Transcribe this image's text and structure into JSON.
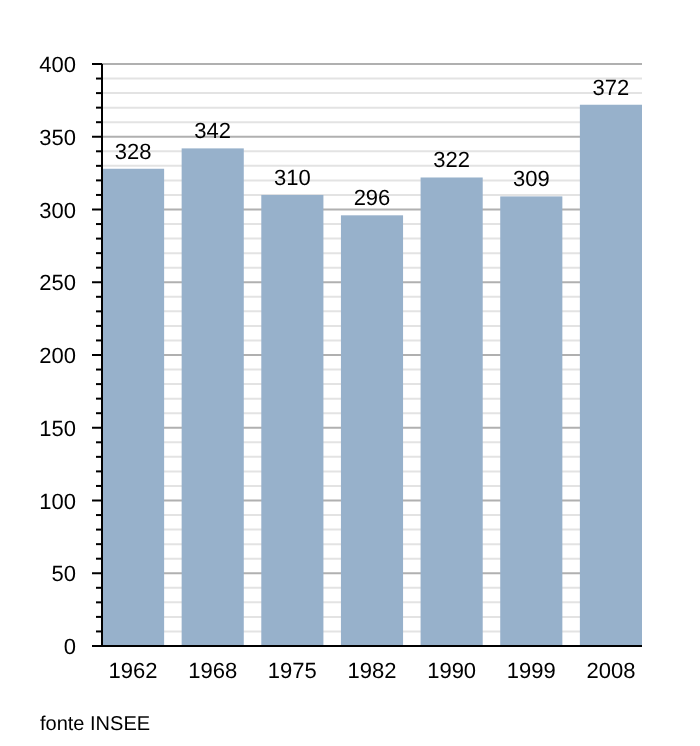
{
  "chart_data": {
    "type": "bar",
    "categories": [
      "1962",
      "1968",
      "1975",
      "1982",
      "1990",
      "1999",
      "2008"
    ],
    "values": [
      328,
      342,
      310,
      296,
      322,
      309,
      372
    ],
    "color": "#97b1cb",
    "data_labels": true,
    "ylim": [
      0,
      400
    ],
    "yticks": [
      0,
      {
        "value": 10,
        "label": null
      },
      {
        "value": 20,
        "label": null
      },
      {
        "value": 30,
        "label": null
      },
      {
        "value": 40,
        "label": null
      },
      50,
      {
        "value": 60,
        "label": null
      },
      {
        "value": 70,
        "label": null
      },
      {
        "value": 80,
        "label": null
      },
      {
        "value": 90,
        "label": null
      },
      100,
      {
        "value": 110,
        "label": null
      },
      {
        "value": 120,
        "label": null
      },
      {
        "value": 130,
        "label": null
      },
      {
        "value": 140,
        "label": null
      },
      150,
      {
        "value": 160,
        "label": null
      },
      {
        "value": 170,
        "label": null
      },
      {
        "value": 180,
        "label": null
      },
      {
        "value": 190,
        "label": null
      },
      200,
      {
        "value": 210,
        "label": null
      },
      {
        "value": 220,
        "label": null
      },
      {
        "value": 230,
        "label": null
      },
      {
        "value": 240,
        "label": null
      },
      250,
      {
        "value": 260,
        "label": null
      },
      {
        "value": 270,
        "label": null
      },
      {
        "value": 280,
        "label": null
      },
      {
        "value": 290,
        "label": null
      },
      300,
      {
        "value": 310,
        "label": null
      },
      {
        "value": 320,
        "label": null
      },
      {
        "value": 330,
        "label": null
      },
      {
        "value": 340,
        "label": null
      },
      350,
      {
        "value": 360,
        "label": null
      },
      {
        "value": 370,
        "label": null
      },
      {
        "value": 380,
        "label": null
      },
      {
        "value": 390,
        "label": null
      },
      400
    ],
    "grid": true,
    "annotations": [
      "fonte INSEE"
    ]
  }
}
